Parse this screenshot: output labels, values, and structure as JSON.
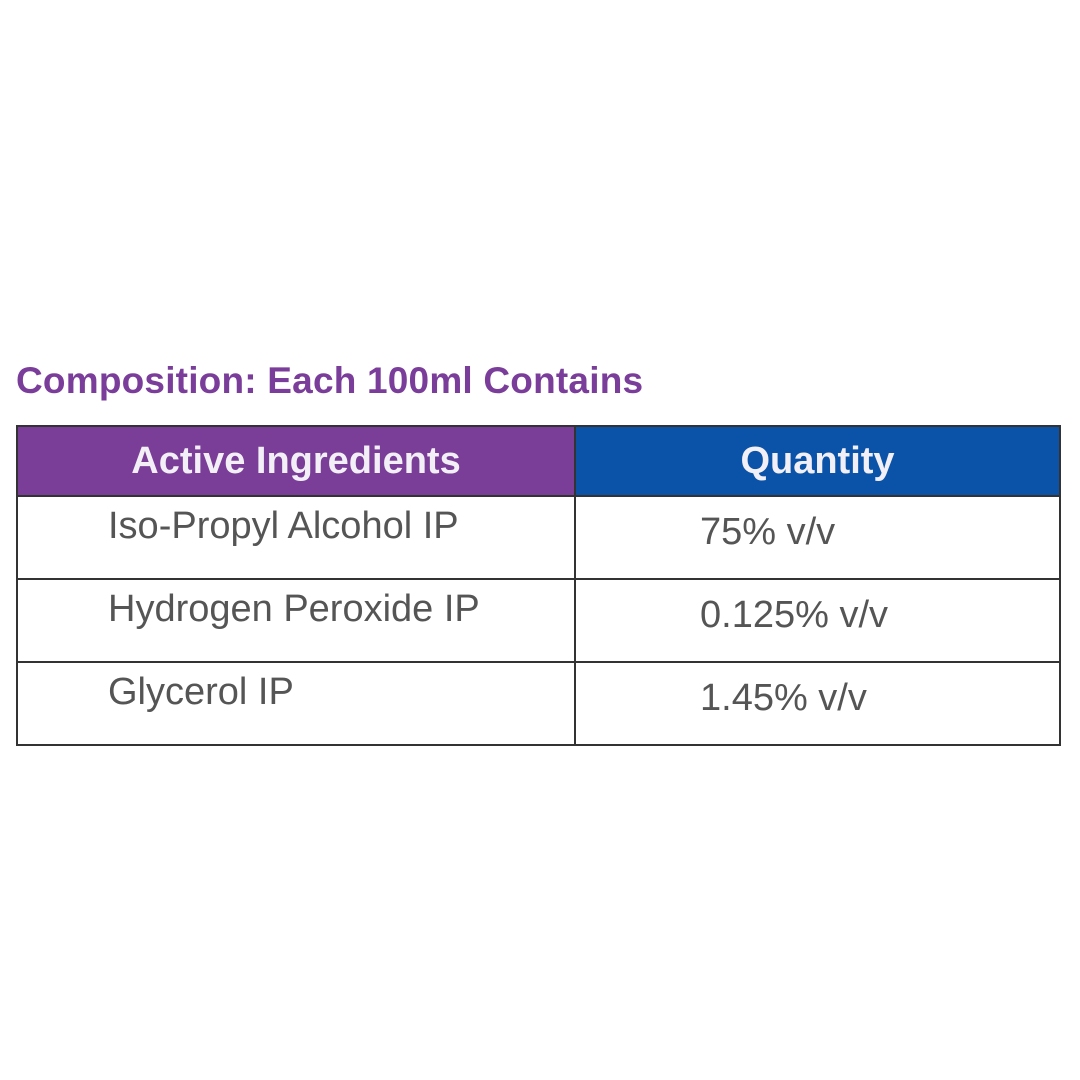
{
  "title": "Composition: Each 100ml Contains",
  "table": {
    "headers": [
      "Active Ingredients",
      "Quantity"
    ],
    "rows": [
      [
        "Iso-Propyl Alcohol IP",
        "75% v/v"
      ],
      [
        "Hydrogen Peroxide IP",
        "0.125% v/v"
      ],
      [
        "Glycerol IP",
        "1.45% v/v"
      ]
    ]
  },
  "colors": {
    "title": "#7a3d9a",
    "header_ingredients_bg": "#7a3d98",
    "header_quantity_bg": "#0a53a8"
  }
}
